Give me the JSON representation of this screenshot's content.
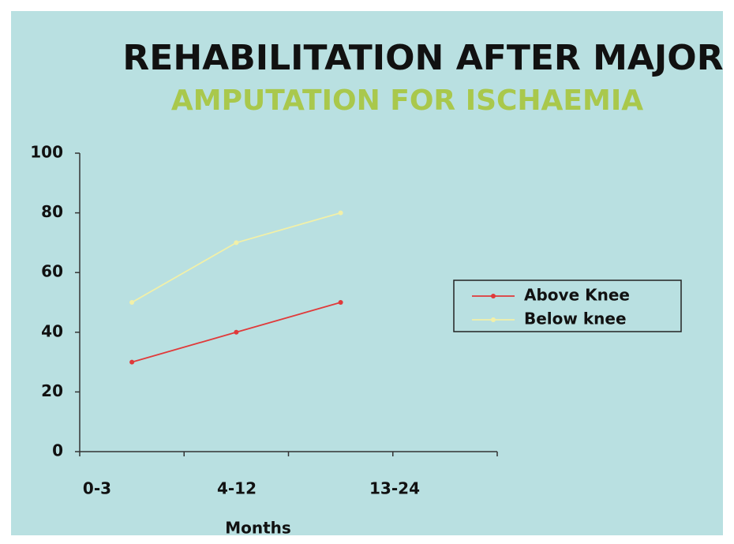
{
  "chart_data": {
    "type": "line",
    "title": "REHABILITATION AFTER MAJOR",
    "subtitle": "AMPUTATION FOR ISCHAEMIA",
    "categories": [
      "0-3",
      "4-12",
      "13-24",
      null
    ],
    "series": [
      {
        "name": "Above Knee",
        "color": "#e03a3a",
        "values": [
          30,
          40,
          50,
          null
        ]
      },
      {
        "name": "Below knee",
        "color": "#f2f0a8",
        "values": [
          50,
          70,
          80,
          null
        ]
      }
    ],
    "xlabel": "Months",
    "ylim": [
      0,
      100
    ],
    "yticks": [
      0,
      20,
      40,
      60,
      80,
      100
    ],
    "grid": false,
    "legend": "right"
  }
}
